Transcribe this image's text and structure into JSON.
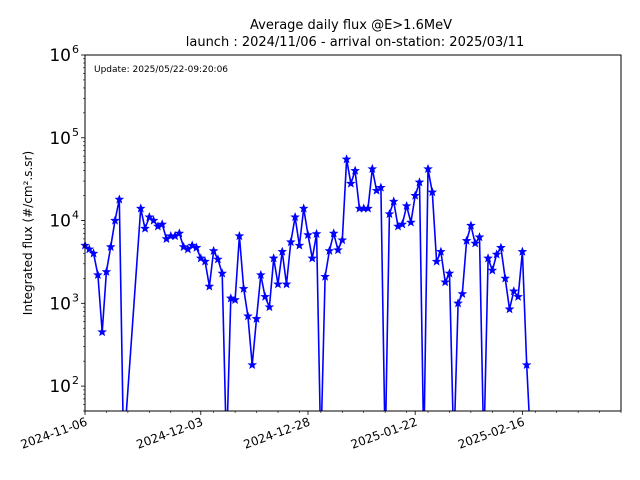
{
  "chart_data": {
    "type": "line",
    "title_line1": "Average daily flux @E>1.6MeV",
    "title_line2": "launch : 2024/11/06 - arrival on-station: 2025/03/11",
    "annotation": "Update: 2025/05/22-09:20:06",
    "ylabel": "Integrated flux (#/cm².s.sr)",
    "xlabel": "",
    "y_scale": "log",
    "ylim": [
      50,
      1000000
    ],
    "xlim": [
      "2024-11-06",
      "2025-03-11"
    ],
    "x_ticks": [
      "2024-11-06",
      "2024-12-03",
      "2024-12-28",
      "2025-01-22",
      "2025-02-16"
    ],
    "y_ticks": [
      {
        "value": 100,
        "base": "10",
        "exp": "2"
      },
      {
        "value": 1000,
        "base": "10",
        "exp": "3"
      },
      {
        "value": 10000,
        "base": "10",
        "exp": "4"
      },
      {
        "value": 100000,
        "base": "10",
        "exp": "5"
      },
      {
        "value": 1000000,
        "base": "10",
        "exp": "6"
      }
    ],
    "grid": false,
    "line_color": "#0000ff",
    "marker": "star",
    "series": [
      {
        "x": [
          "2024-11-06",
          "2024-11-07",
          "2024-11-08",
          "2024-11-09",
          "2024-11-10",
          "2024-11-11",
          "2024-11-12",
          "2024-11-13",
          "2024-11-14",
          "2024-11-15",
          "2024-11-19",
          "2024-11-20",
          "2024-11-21",
          "2024-11-22",
          "2024-11-23",
          "2024-11-24",
          "2024-11-25",
          "2024-11-26",
          "2024-11-27",
          "2024-11-28",
          "2024-11-29",
          "2024-11-30",
          "2024-12-01",
          "2024-12-02",
          "2024-12-03",
          "2024-12-04",
          "2024-12-05",
          "2024-12-06",
          "2024-12-07",
          "2024-12-08",
          "2024-12-09",
          "2024-12-10",
          "2024-12-11",
          "2024-12-12",
          "2024-12-13",
          "2024-12-14",
          "2024-12-15",
          "2024-12-16",
          "2024-12-17",
          "2024-12-18",
          "2024-12-19",
          "2024-12-20",
          "2024-12-21",
          "2024-12-22",
          "2024-12-23",
          "2024-12-24",
          "2024-12-25",
          "2024-12-26",
          "2024-12-27",
          "2024-12-28",
          "2024-12-29",
          "2024-12-30",
          "2024-12-31",
          "2025-01-01",
          "2025-01-02",
          "2025-01-03",
          "2025-01-04",
          "2025-01-05",
          "2025-01-06",
          "2025-01-07",
          "2025-01-08",
          "2025-01-09",
          "2025-01-10",
          "2025-01-11",
          "2025-01-12",
          "2025-01-13",
          "2025-01-14",
          "2025-01-15",
          "2025-01-16",
          "2025-01-17",
          "2025-01-18",
          "2025-01-19",
          "2025-01-20",
          "2025-01-21",
          "2025-01-22",
          "2025-01-23",
          "2025-01-24",
          "2025-01-25",
          "2025-01-26",
          "2025-01-27",
          "2025-01-28",
          "2025-01-29",
          "2025-01-30",
          "2025-01-31",
          "2025-02-01",
          "2025-02-02",
          "2025-02-03",
          "2025-02-04",
          "2025-02-05",
          "2025-02-06",
          "2025-02-07",
          "2025-02-08",
          "2025-02-09",
          "2025-02-10",
          "2025-02-11",
          "2025-02-12",
          "2025-02-13",
          "2025-02-14",
          "2025-02-15",
          "2025-02-16",
          "2025-02-17",
          "2025-02-18",
          "2025-02-19",
          "2025-02-20",
          "2025-02-21"
        ],
        "values": [
          5000,
          4500,
          4000,
          2200,
          450,
          2400,
          4800,
          10000,
          18000,
          null,
          14000,
          8000,
          11000,
          10000,
          8500,
          9000,
          6000,
          6500,
          6500,
          7000,
          4800,
          4500,
          5000,
          4700,
          3500,
          3200,
          1600,
          4300,
          3400,
          2300,
          null,
          1150,
          1100,
          6500,
          1500,
          700,
          180,
          650,
          2200,
          1200,
          900,
          3500,
          1700,
          4200,
          1700,
          5500,
          11000,
          5000,
          14000,
          6700,
          3500,
          6900,
          null,
          2100,
          4300,
          7000,
          4400,
          5800,
          55000,
          28000,
          40000,
          14000,
          14000,
          14000,
          42000,
          23000,
          25000,
          null,
          12000,
          17000,
          8500,
          9000,
          15000,
          9500,
          20000,
          29000,
          null,
          42000,
          22000,
          3200,
          4200,
          1800,
          2300,
          null,
          1000,
          1300,
          5700,
          8700,
          5300,
          6300,
          null,
          3500,
          2500,
          3900,
          4700,
          2000,
          850,
          1400,
          1200,
          4200,
          180,
          null,
          null,
          null,
          null
        ]
      }
    ]
  }
}
